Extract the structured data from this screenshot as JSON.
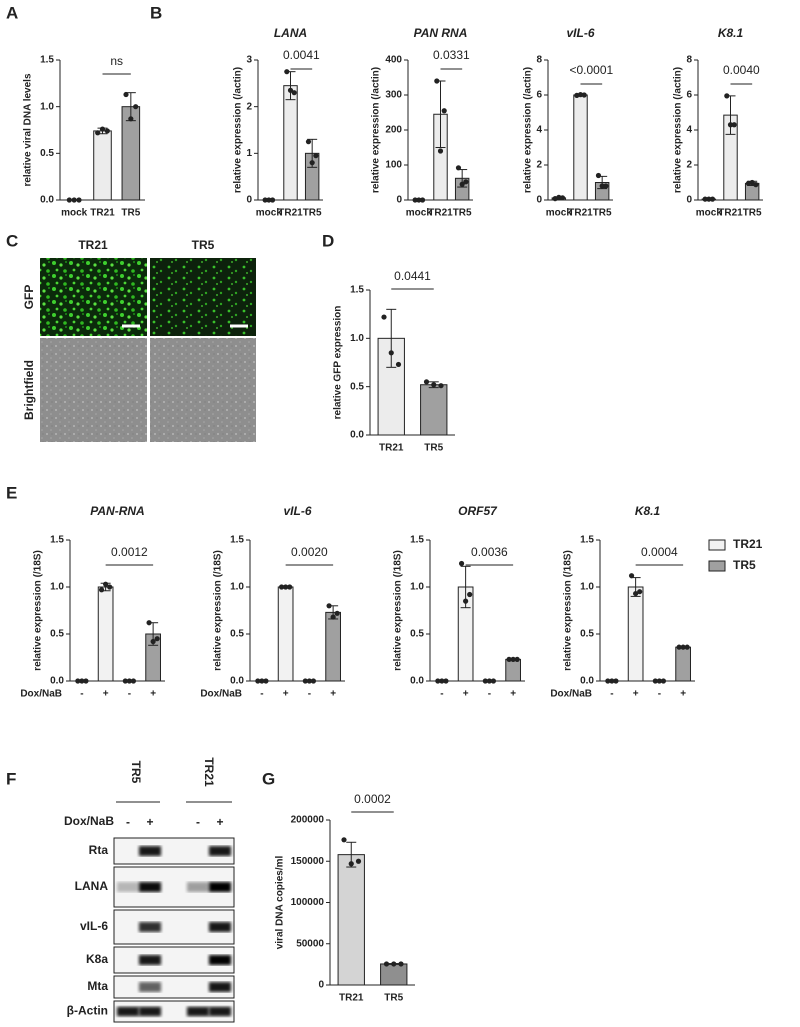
{
  "panel_labels": [
    "A",
    "B",
    "C",
    "D",
    "E",
    "F",
    "G"
  ],
  "microscopy": {
    "columns": [
      "TR21",
      "TR5"
    ],
    "rows": [
      "GFP",
      "Brightfield"
    ]
  },
  "western_blot": {
    "groups": [
      "TR5",
      "TR21"
    ],
    "treatment_label": "Dox/NaB",
    "lanes": [
      "-",
      "+",
      "-",
      "+"
    ],
    "rows": [
      "Rta",
      "LANA",
      "vIL-6",
      "K8a",
      "Mta",
      "β-Actin"
    ]
  },
  "chart_data": [
    {
      "type": "bar",
      "ylabel": "relative viral DNA levels",
      "categories": [
        "mock",
        "TR21",
        "TR5"
      ],
      "values": [
        0,
        0.74,
        1.0
      ],
      "errors": [
        0,
        0.03,
        0.15
      ],
      "points": [
        [
          0,
          0,
          0
        ],
        [
          0.72,
          0.76,
          0.74
        ],
        [
          1.13,
          0.87,
          1.0
        ]
      ],
      "colors": [
        "#ffffff",
        "#ececec",
        "#a0a0a0"
      ],
      "ylim": [
        0,
        1.5
      ],
      "yticks": [
        {
          "value": 0,
          "label": "0.0"
        },
        0.5,
        {
          "value": 1,
          "label": "1.0"
        },
        1.5
      ],
      "annotation": "ns"
    },
    {
      "type": "bar",
      "title": "LANA",
      "ylabel": "relative expression (/actin)",
      "categories": [
        "mock",
        "TR21",
        "TR5"
      ],
      "values": [
        0,
        2.45,
        1.0
      ],
      "errors": [
        0,
        0.3,
        0.3
      ],
      "points": [
        [
          0,
          0,
          0
        ],
        [
          2.75,
          2.35,
          2.3
        ],
        [
          1.25,
          0.8,
          0.95
        ]
      ],
      "colors": [
        "#ffffff",
        "#ececec",
        "#a0a0a0"
      ],
      "ylim": [
        0,
        3
      ],
      "yticks": [
        0,
        1,
        2,
        3
      ],
      "annotation": "0.0041"
    },
    {
      "type": "bar",
      "title": "PAN RNA",
      "ylabel": "relative expression (/actin)",
      "categories": [
        "mock",
        "TR21",
        "TR5"
      ],
      "values": [
        0,
        245,
        62
      ],
      "errors": [
        0,
        95,
        25
      ],
      "points": [
        [
          0,
          0,
          0
        ],
        [
          340,
          140,
          255
        ],
        [
          92,
          45,
          52
        ]
      ],
      "colors": [
        "#ffffff",
        "#ececec",
        "#a0a0a0"
      ],
      "ylim": [
        0,
        400
      ],
      "yticks": [
        0,
        100,
        200,
        300,
        400
      ],
      "annotation": "0.0331"
    },
    {
      "type": "bar",
      "title": "vIL-6",
      "ylabel": "relative expression (/actin)",
      "categories": [
        "mock",
        "TR21",
        "TR5"
      ],
      "values": [
        0.12,
        6.0,
        1.0
      ],
      "errors": [
        0.05,
        0.02,
        0.35
      ],
      "points": [
        [
          0.08,
          0.15,
          0.12
        ],
        [
          5.98,
          6.02,
          6.0
        ],
        [
          1.4,
          0.8,
          0.8
        ]
      ],
      "colors": [
        "#ffffff",
        "#ececec",
        "#a0a0a0"
      ],
      "ylim": [
        0,
        8
      ],
      "yticks": [
        0,
        2,
        4,
        6,
        8
      ],
      "annotation": "<0.0001"
    },
    {
      "type": "bar",
      "title": "K8.1",
      "ylabel": "relative expression (/actin)",
      "categories": [
        "mock",
        "TR21",
        "TR5"
      ],
      "values": [
        0.05,
        4.85,
        0.95
      ],
      "errors": [
        0.02,
        1.1,
        0.12
      ],
      "points": [
        [
          0.05,
          0.05,
          0.05
        ],
        [
          5.95,
          4.3,
          4.3
        ],
        [
          0.95,
          1.0,
          0.88
        ]
      ],
      "colors": [
        "#ffffff",
        "#ececec",
        "#a0a0a0"
      ],
      "ylim": [
        0,
        8
      ],
      "yticks": [
        0,
        2,
        4,
        6,
        8
      ],
      "annotation": "0.0040"
    },
    {
      "type": "bar",
      "ylabel": "relative GFP expression",
      "categories": [
        "TR21",
        "TR5"
      ],
      "values": [
        1.0,
        0.52
      ],
      "errors": [
        0.3,
        0.03
      ],
      "points": [
        [
          1.22,
          0.85,
          0.73
        ],
        [
          0.55,
          0.52,
          0.51
        ]
      ],
      "colors": [
        "#ececec",
        "#a0a0a0"
      ],
      "ylim": [
        0,
        1.5
      ],
      "yticks": [
        {
          "value": 0,
          "label": "0.0"
        },
        0.5,
        {
          "value": 1,
          "label": "1.0"
        },
        1.5
      ],
      "annotation": "0.0441"
    },
    {
      "type": "bar",
      "title": "PAN-RNA",
      "ylabel": "relative expression (/18S)",
      "x_label": "Dox/NaB",
      "categories": [
        "-",
        "+",
        "-",
        "+"
      ],
      "series": [
        {
          "color": "#f2f2f2",
          "values": [
            0,
            1.0,
            null,
            null
          ],
          "errors": [
            0,
            0.04,
            null,
            null
          ],
          "points": [
            [
              0,
              0,
              0
            ],
            [
              0.97,
              1.03,
              1.0
            ],
            null,
            null
          ]
        },
        {
          "color": "#a0a0a0",
          "values": [
            null,
            null,
            0,
            0.5
          ],
          "errors": [
            null,
            null,
            0,
            0.12
          ],
          "points": [
            null,
            null,
            [
              0,
              0,
              0
            ],
            [
              0.62,
              0.42,
              0.45
            ]
          ]
        }
      ],
      "ylim": [
        0,
        1.5
      ],
      "yticks": [
        {
          "value": 0,
          "label": "0.0"
        },
        0.5,
        {
          "value": 1,
          "label": "1.0"
        },
        1.5
      ],
      "annotation": "0.0012"
    },
    {
      "type": "bar",
      "title": "vIL-6",
      "ylabel": "relative expression (/18S)",
      "x_label": "Dox/NaB",
      "categories": [
        "-",
        "+",
        "-",
        "+"
      ],
      "series": [
        {
          "color": "#f2f2f2",
          "values": [
            0,
            1.0,
            null,
            null
          ],
          "errors": [
            0,
            0.01,
            null,
            null
          ],
          "points": [
            [
              0,
              0,
              0
            ],
            [
              1.0,
              1.0,
              1.0
            ],
            null,
            null
          ]
        },
        {
          "color": "#a0a0a0",
          "values": [
            null,
            null,
            0,
            0.73
          ],
          "errors": [
            null,
            null,
            0,
            0.07
          ],
          "points": [
            null,
            null,
            [
              0,
              0,
              0
            ],
            [
              0.8,
              0.68,
              0.72
            ]
          ]
        }
      ],
      "ylim": [
        0,
        1.5
      ],
      "yticks": [
        {
          "value": 0,
          "label": "0.0"
        },
        0.5,
        {
          "value": 1,
          "label": "1.0"
        },
        1.5
      ],
      "annotation": "0.0020"
    },
    {
      "type": "bar",
      "title": "ORF57",
      "ylabel": "relative expression (/18S)",
      "categories": [
        "-",
        "+",
        "-",
        "+"
      ],
      "series": [
        {
          "color": "#f2f2f2",
          "values": [
            0,
            1.0,
            null,
            null
          ],
          "errors": [
            0,
            0.22,
            null,
            null
          ],
          "points": [
            [
              0,
              0,
              0
            ],
            [
              1.25,
              0.85,
              0.92
            ],
            null,
            null
          ]
        },
        {
          "color": "#a0a0a0",
          "values": [
            null,
            null,
            0,
            0.23
          ],
          "errors": [
            null,
            null,
            0,
            0.01
          ],
          "points": [
            null,
            null,
            [
              0,
              0,
              0
            ],
            [
              0.23,
              0.23,
              0.23
            ]
          ]
        }
      ],
      "ylim": [
        0,
        1.5
      ],
      "yticks": [
        {
          "value": 0,
          "label": "0.0"
        },
        0.5,
        {
          "value": 1,
          "label": "1.0"
        },
        1.5
      ],
      "annotation": "0.0036"
    },
    {
      "type": "bar",
      "title": "K8.1",
      "ylabel": "relative expression (/18S)",
      "x_label": "Dox/NaB",
      "categories": [
        "-",
        "+",
        "-",
        "+"
      ],
      "series": [
        {
          "name": "TR21",
          "color": "#f2f2f2",
          "values": [
            0,
            1.0,
            null,
            null
          ],
          "errors": [
            0,
            0.1,
            null,
            null
          ],
          "points": [
            [
              0,
              0,
              0
            ],
            [
              1.12,
              0.93,
              0.95
            ],
            null,
            null
          ]
        },
        {
          "name": "TR5",
          "color": "#a0a0a0",
          "values": [
            null,
            null,
            0,
            0.36
          ],
          "errors": [
            null,
            null,
            0,
            0.01
          ],
          "points": [
            null,
            null,
            [
              0,
              0,
              0
            ],
            [
              0.36,
              0.36,
              0.36
            ]
          ]
        }
      ],
      "ylim": [
        0,
        1.5
      ],
      "yticks": [
        {
          "value": 0,
          "label": "0.0"
        },
        0.5,
        {
          "value": 1,
          "label": "1.0"
        },
        1.5
      ],
      "annotation": "0.0004",
      "legend": "right"
    },
    {
      "type": "bar",
      "ylabel": "viral DNA copies/ml",
      "categories": [
        "TR21",
        "TR5"
      ],
      "values": [
        158000,
        25500
      ],
      "errors": [
        15000,
        500
      ],
      "points": [
        [
          176000,
          147000,
          150000
        ],
        [
          25500,
          25500,
          25500
        ]
      ],
      "colors": [
        "#d4d4d4",
        "#8f8f8f"
      ],
      "ylim": [
        0,
        200000
      ],
      "yticks": [
        0,
        50000,
        100000,
        150000,
        200000
      ],
      "annotation": "0.0002"
    }
  ]
}
